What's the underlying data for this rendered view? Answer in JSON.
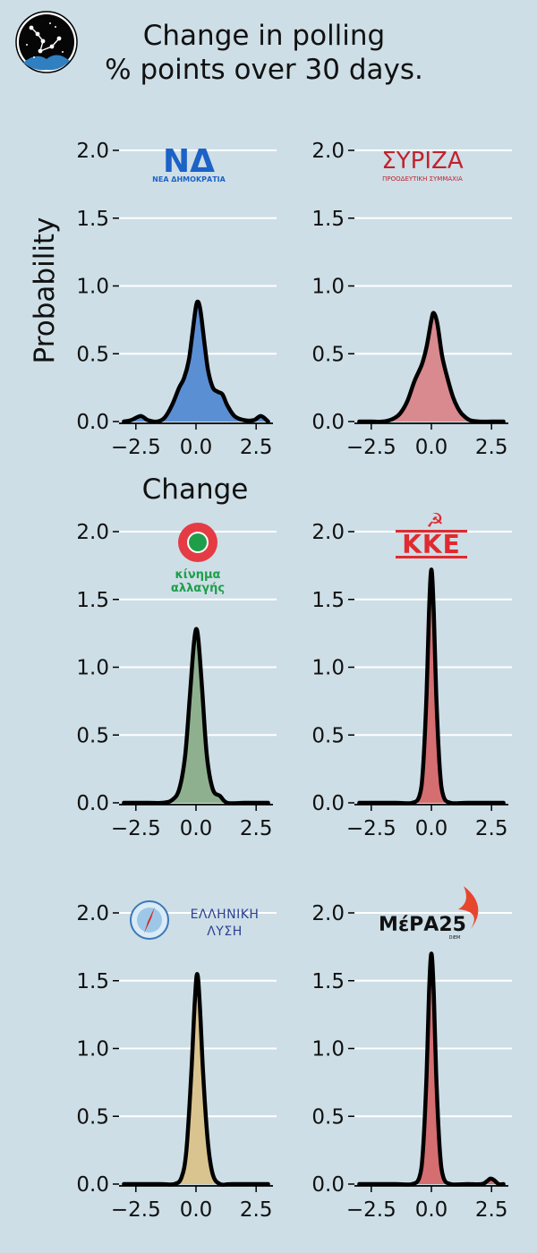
{
  "title": "Change in polling\n% points over 30 days.",
  "title_lines": [
    "Change in polling",
    "% points over 30 days."
  ],
  "colors": {
    "background": "#cddee6",
    "gridline": "#ffffff",
    "curve": "#000000"
  },
  "chart_data": [
    {
      "type": "area",
      "party": "ΝΔ",
      "logo_text": [
        "ΝΔ",
        "ΝΕΑ ΔΗΜΟΚΡΑΤΙΑ"
      ],
      "fill_color": "#5b8fd4",
      "xlabel": "Change",
      "ylabel": "Probability",
      "xlim": [
        -3.2,
        3.2
      ],
      "ylim": [
        0,
        2.2
      ],
      "xticks": [
        "−2.5",
        "0.0",
        "2.5"
      ],
      "yticks": [
        "0.0",
        "0.5",
        "1.0",
        "1.5",
        "2.0"
      ],
      "grid": true,
      "x": [
        -3.0,
        -2.7,
        -2.3,
        -2.0,
        -1.6,
        -1.3,
        -1.0,
        -0.7,
        -0.5,
        -0.3,
        -0.15,
        0.0,
        0.1,
        0.2,
        0.35,
        0.5,
        0.7,
        0.9,
        1.1,
        1.3,
        1.6,
        2.0,
        2.4,
        2.7,
        3.0
      ],
      "y": [
        0.0,
        0.01,
        0.04,
        0.01,
        0.0,
        0.03,
        0.12,
        0.25,
        0.32,
        0.45,
        0.65,
        0.85,
        0.88,
        0.8,
        0.58,
        0.38,
        0.25,
        0.22,
        0.2,
        0.12,
        0.04,
        0.01,
        0.01,
        0.04,
        0.0
      ]
    },
    {
      "type": "area",
      "party": "ΣΥΡΙΖΑ",
      "logo_text": [
        "ΣΥΡΙΖΑ",
        "ΠΡΟΟΔΕΥΤΙΚΗ ΣΥΜΜΑΧΙΑ"
      ],
      "fill_color": "#d98a8f",
      "xlabel": "",
      "ylabel": "",
      "xlim": [
        -3.2,
        3.2
      ],
      "ylim": [
        0,
        2.2
      ],
      "xticks": [
        "−2.5",
        "0.0",
        "2.5"
      ],
      "yticks": [
        "0.0",
        "0.5",
        "1.0",
        "1.5",
        "2.0"
      ],
      "grid": true,
      "x": [
        -3.0,
        -2.5,
        -2.0,
        -1.6,
        -1.3,
        -1.0,
        -0.7,
        -0.4,
        -0.2,
        0.0,
        0.1,
        0.25,
        0.45,
        0.7,
        0.9,
        1.1,
        1.3,
        1.6,
        2.0,
        2.5,
        3.0
      ],
      "y": [
        0.0,
        0.0,
        0.0,
        0.02,
        0.06,
        0.15,
        0.3,
        0.42,
        0.55,
        0.75,
        0.8,
        0.72,
        0.48,
        0.3,
        0.18,
        0.1,
        0.05,
        0.01,
        0.0,
        0.0,
        0.0
      ]
    },
    {
      "type": "area",
      "party": "ΚΙΝΑΛ",
      "logo_text": [
        "κίνημα",
        "αλλαγής"
      ],
      "fill_color": "#8fb08f",
      "xlabel": "",
      "ylabel": "",
      "xlim": [
        -3.2,
        3.2
      ],
      "ylim": [
        0,
        2.2
      ],
      "xticks": [
        "−2.5",
        "0.0",
        "2.5"
      ],
      "yticks": [
        "0.0",
        "0.5",
        "1.0",
        "1.5",
        "2.0"
      ],
      "grid": true,
      "x": [
        -3.0,
        -2.0,
        -1.4,
        -1.0,
        -0.7,
        -0.45,
        -0.25,
        -0.1,
        0.0,
        0.1,
        0.25,
        0.45,
        0.7,
        1.0,
        1.3,
        2.0,
        3.0
      ],
      "y": [
        0.0,
        0.0,
        0.0,
        0.02,
        0.1,
        0.35,
        0.8,
        1.15,
        1.28,
        1.2,
        0.85,
        0.35,
        0.1,
        0.05,
        0.0,
        0.0,
        0.0
      ]
    },
    {
      "type": "area",
      "party": "ΚΚΕ",
      "logo_text": [
        "☭",
        "ΚΚΕ"
      ],
      "fill_color": "#d46e70",
      "xlabel": "",
      "ylabel": "",
      "xlim": [
        -3.2,
        3.2
      ],
      "ylim": [
        0,
        2.2
      ],
      "xticks": [
        "−2.5",
        "0.0",
        "2.5"
      ],
      "yticks": [
        "0.0",
        "0.5",
        "1.0",
        "1.5",
        "2.0"
      ],
      "grid": true,
      "x": [
        -3.0,
        -1.5,
        -0.8,
        -0.5,
        -0.35,
        -0.2,
        -0.1,
        0.0,
        0.1,
        0.2,
        0.35,
        0.5,
        0.8,
        1.5,
        3.0
      ],
      "y": [
        0.0,
        0.0,
        0.0,
        0.05,
        0.25,
        0.8,
        1.4,
        1.72,
        1.4,
        0.8,
        0.25,
        0.05,
        0.0,
        0.0,
        0.0
      ]
    },
    {
      "type": "area",
      "party": "ΕΛΛΗΝΙΚΗ ΛΥΣΗ",
      "logo_text": [
        "ΕΛΛΗΝΙΚΗ",
        "ΛΥΣΗ"
      ],
      "fill_color": "#d9c48f",
      "xlabel": "",
      "ylabel": "",
      "xlim": [
        -3.2,
        3.2
      ],
      "ylim": [
        0,
        2.2
      ],
      "xticks": [
        "−2.5",
        "0.0",
        "2.5"
      ],
      "yticks": [
        "0.0",
        "0.5",
        "1.0",
        "1.5",
        "2.0"
      ],
      "grid": true,
      "x": [
        -3.0,
        -1.5,
        -0.9,
        -0.6,
        -0.4,
        -0.2,
        -0.05,
        0.05,
        0.15,
        0.3,
        0.5,
        0.7,
        1.0,
        1.5,
        3.0
      ],
      "y": [
        0.0,
        0.0,
        0.0,
        0.05,
        0.25,
        0.8,
        1.35,
        1.55,
        1.35,
        0.8,
        0.3,
        0.07,
        0.0,
        0.0,
        0.0
      ]
    },
    {
      "type": "area",
      "party": "ΜέΡΑ25",
      "logo_text": [
        "ΜέΡΑ25",
        "DiEM"
      ],
      "fill_color": "#d46e70",
      "xlabel": "",
      "ylabel": "",
      "xlim": [
        -3.2,
        3.2
      ],
      "ylim": [
        0,
        2.2
      ],
      "xticks": [
        "−2.5",
        "0.0",
        "2.5"
      ],
      "yticks": [
        "0.0",
        "0.5",
        "1.0",
        "1.5",
        "2.0"
      ],
      "grid": true,
      "x": [
        -3.0,
        -1.5,
        -0.8,
        -0.5,
        -0.35,
        -0.2,
        -0.1,
        0.0,
        0.1,
        0.2,
        0.35,
        0.5,
        0.8,
        1.5,
        2.1,
        2.3,
        2.45,
        2.6,
        2.8,
        3.0
      ],
      "y": [
        0.0,
        0.0,
        0.0,
        0.05,
        0.25,
        0.8,
        1.4,
        1.7,
        1.4,
        0.8,
        0.25,
        0.05,
        0.0,
        0.0,
        0.0,
        0.02,
        0.04,
        0.03,
        0.0,
        0.0
      ]
    }
  ]
}
